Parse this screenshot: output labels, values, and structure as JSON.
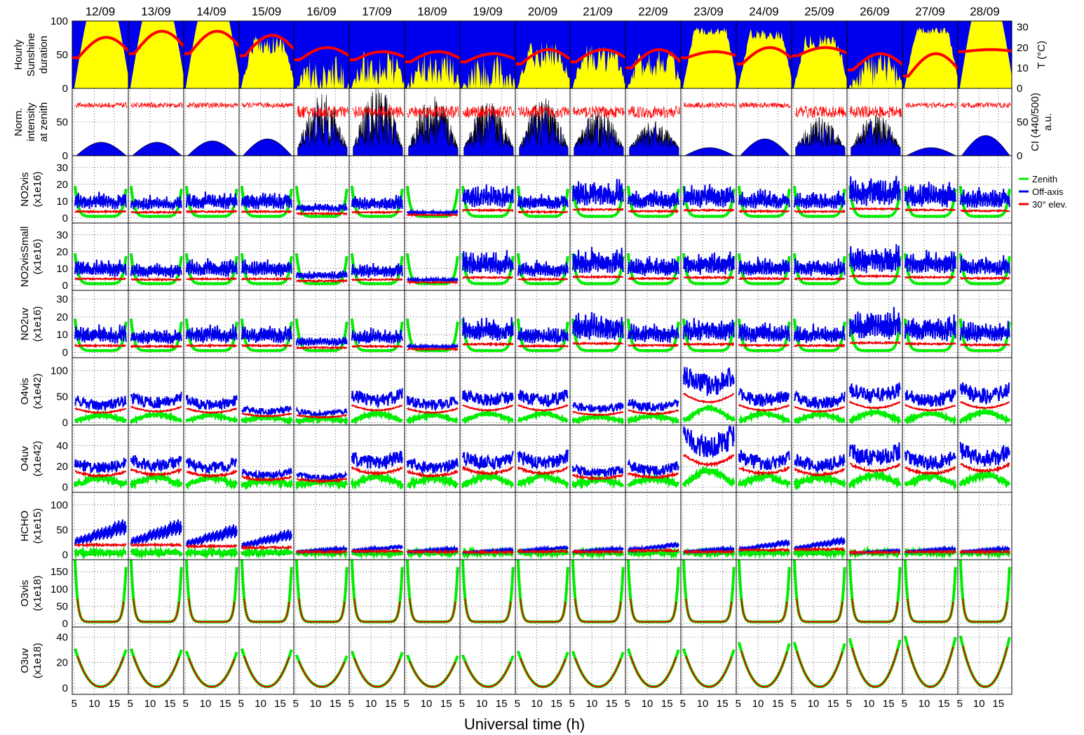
{
  "chart_data": {
    "type": "line",
    "xlabel": "Universal time (h)",
    "x_ticks": [
      5,
      10,
      15
    ],
    "xlim": [
      4.5,
      18.5
    ],
    "days": [
      "12/09",
      "13/09",
      "14/09",
      "15/09",
      "16/09",
      "17/09",
      "18/09",
      "19/09",
      "20/09",
      "21/09",
      "22/09",
      "23/09",
      "24/09",
      "25/09",
      "26/09",
      "27/09",
      "28/09"
    ],
    "rows": [
      {
        "ylabel": [
          "Hourly",
          "Sunshine",
          "duration"
        ],
        "ylim": [
          0,
          100
        ],
        "yticks": [
          0,
          50,
          100
        ],
        "right_label": "T (°C)",
        "right_ticks": [
          0,
          10,
          20,
          30
        ],
        "right_ylim": [
          0,
          33
        ]
      },
      {
        "ylabel": [
          "Norm.",
          "intensity",
          "at zenith"
        ],
        "ylim": [
          0,
          100
        ],
        "yticks": [
          0,
          50
        ],
        "right_label": [
          "CI (440/500)",
          "a.u."
        ],
        "right_ticks": [
          0,
          50
        ],
        "right_ylim": [
          0,
          100
        ]
      },
      {
        "ylabel": [
          "NO2vis",
          "(x1e16)"
        ],
        "ylim": [
          -3,
          37
        ],
        "yticks": [
          0,
          10,
          20,
          30
        ]
      },
      {
        "ylabel": [
          "NO2visSmall",
          "(x1e16)"
        ],
        "ylim": [
          -3,
          37
        ],
        "yticks": [
          0,
          10,
          20,
          30
        ]
      },
      {
        "ylabel": [
          "NO2uv",
          "(x1e16)"
        ],
        "ylim": [
          -3,
          35
        ],
        "yticks": [
          0,
          10,
          20,
          30
        ]
      },
      {
        "ylabel": [
          "O4vis",
          "(x1e42)"
        ],
        "ylim": [
          -5,
          125
        ],
        "yticks": [
          0,
          50,
          100
        ]
      },
      {
        "ylabel": [
          "O4uv",
          "(x1e42)"
        ],
        "ylim": [
          -5,
          60
        ],
        "yticks": [
          0,
          20,
          40
        ]
      },
      {
        "ylabel": [
          "HCHO",
          "(x1e15)"
        ],
        "ylim": [
          -10,
          125
        ],
        "yticks": [
          0,
          50,
          100
        ]
      },
      {
        "ylabel": [
          "O3vis",
          "(x1e18)"
        ],
        "ylim": [
          -10,
          185
        ],
        "yticks": [
          0,
          50,
          100,
          150
        ]
      },
      {
        "ylabel": [
          "O3uv",
          "(x1e18)"
        ],
        "ylim": [
          -5,
          48
        ],
        "yticks": [
          0,
          20,
          40
        ]
      }
    ],
    "legend": {
      "placement": "right",
      "items": [
        {
          "label": "Zenith",
          "color": "#00ee00"
        },
        {
          "label": "Off-axis",
          "color": "#0000ee"
        },
        {
          "label": "30° elev.",
          "color": "#ee0000"
        }
      ]
    },
    "colors": {
      "sunshine": "#ffff00",
      "sky": "#0000ee",
      "temperature": "#ff0000",
      "intensity": "#0000ee",
      "ci": "#ff0000"
    },
    "grid": true,
    "daily_params": {
      "sunshine_cloudiness": [
        0.05,
        0.05,
        0.05,
        0.35,
        0.85,
        0.7,
        0.7,
        0.85,
        0.5,
        0.55,
        0.6,
        0.15,
        0.2,
        0.3,
        0.75,
        0.15,
        0.1
      ],
      "temperature_max": [
        25,
        28,
        28,
        26,
        20,
        18,
        18,
        17,
        19,
        19,
        19,
        18,
        20,
        20,
        17,
        17,
        19
      ],
      "temperature_min": [
        15,
        17,
        17,
        16,
        14,
        14,
        13,
        13,
        12,
        13,
        10,
        15,
        12,
        16,
        9,
        6,
        18
      ],
      "intensity_peak": [
        20,
        20,
        22,
        25,
        80,
        90,
        80,
        70,
        75,
        60,
        45,
        12,
        25,
        50,
        55,
        12,
        30
      ],
      "no2_offaxis_level": [
        12,
        10,
        12,
        12,
        6,
        10,
        2,
        16,
        11,
        18,
        13,
        16,
        13,
        12,
        20,
        17,
        14
      ],
      "o4_offaxis_level": [
        40,
        45,
        40,
        25,
        20,
        50,
        40,
        50,
        50,
        30,
        35,
        85,
        50,
        45,
        60,
        50,
        60
      ],
      "hcho_offaxis_level": [
        70,
        70,
        60,
        50,
        15,
        20,
        15,
        12,
        18,
        15,
        25,
        15,
        30,
        35,
        10,
        15,
        15
      ],
      "o3_sza_amplitude": [
        30,
        30,
        28,
        30,
        25,
        28,
        25,
        25,
        28,
        28,
        30,
        30,
        35,
        35,
        38,
        40,
        40
      ]
    }
  }
}
